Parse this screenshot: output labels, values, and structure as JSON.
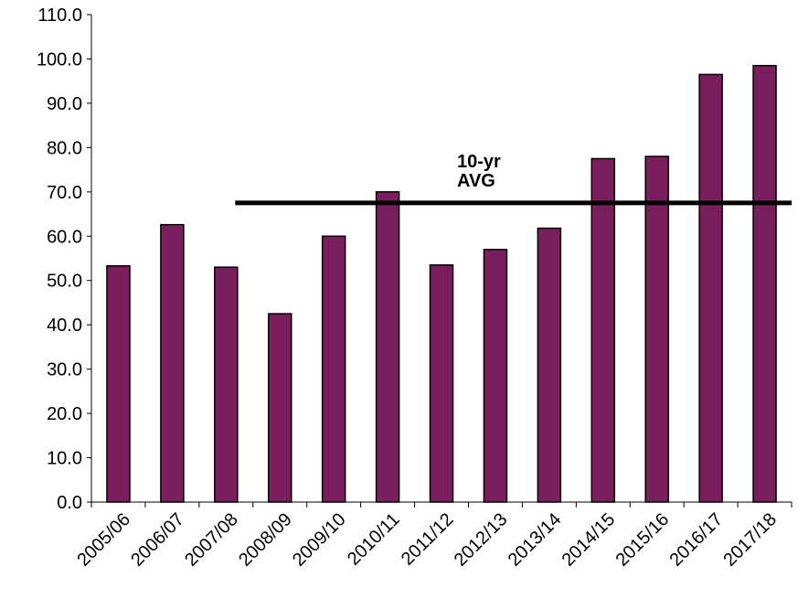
{
  "chart_data": {
    "type": "bar",
    "title": "",
    "xlabel": "",
    "ylabel": "",
    "categories": [
      "2005/06",
      "2006/07",
      "2007/08",
      "2008/09",
      "2009/10",
      "2010/11",
      "2011/12",
      "2012/13",
      "2013/14",
      "2014/15",
      "2015/16",
      "2016/17",
      "2017/18"
    ],
    "values": [
      53.3,
      62.6,
      53.0,
      42.5,
      60.0,
      70.0,
      53.5,
      57.0,
      61.8,
      77.5,
      78.0,
      96.5,
      98.5
    ],
    "ylim": [
      0,
      110
    ],
    "yticks": [
      "0.0",
      "10.0",
      "20.0",
      "30.0",
      "40.0",
      "50.0",
      "60.0",
      "70.0",
      "80.0",
      "90.0",
      "100.0",
      "110.0"
    ],
    "bar_color": "#7B1E5E",
    "bar_outline": "#000000",
    "grid": false,
    "reference_line": {
      "value": 67.5,
      "label_lines": [
        "10-yr",
        "AVG"
      ],
      "start_category": "2008/09",
      "color": "#000000"
    }
  }
}
